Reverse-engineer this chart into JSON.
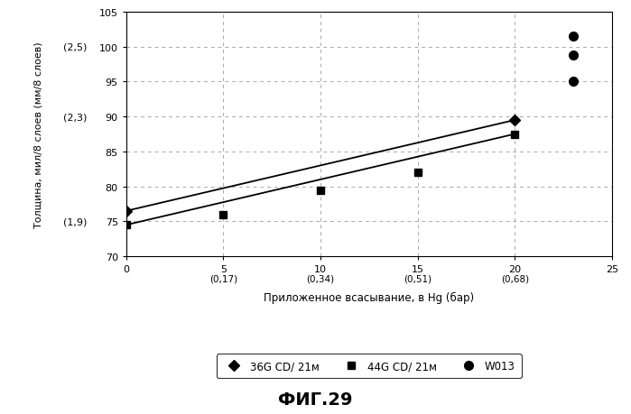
{
  "title": "ФИГ.29",
  "xlabel": "Приложенное всасывание, в Hg (бар)",
  "ylabel": "Толщина, мил/8 слоев (мм/8 слоев)",
  "xlim": [
    0,
    25
  ],
  "ylim": [
    70,
    105
  ],
  "xticks": [
    0,
    5,
    10,
    15,
    20,
    25
  ],
  "xtick_labels_top": [
    "0",
    "5",
    "10",
    "15",
    "20",
    "25"
  ],
  "xtick_labels_bot": [
    "",
    "(0,17)",
    "(0,34)",
    "(0,51)",
    "(0,68)",
    ""
  ],
  "yticks": [
    70,
    75,
    80,
    85,
    90,
    95,
    100,
    105
  ],
  "ytick_secondary_labels": {
    "75": "(1,9)",
    "90": "(2,3)",
    "100": "(2,5)"
  },
  "series_36G": {
    "label": "36G CD/ 21м",
    "x": [
      0,
      20
    ],
    "y": [
      76.5,
      89.5
    ],
    "marker": "D",
    "color": "#000000",
    "markersize": 6
  },
  "series_44G": {
    "label": "44G CD/ 21м",
    "x": [
      0,
      5,
      10,
      15,
      20
    ],
    "y": [
      74.5,
      76.0,
      79.5,
      82.0,
      87.5
    ],
    "marker": "s",
    "color": "#000000",
    "markersize": 6
  },
  "series_W013": {
    "label": "W013",
    "x": [
      23,
      23,
      23
    ],
    "y": [
      95.0,
      98.8,
      101.5
    ],
    "marker": "o",
    "color": "#000000",
    "markersize": 7
  },
  "trendline_36G": {
    "x": [
      0,
      20
    ],
    "y": [
      76.5,
      89.5
    ]
  },
  "trendline_44G": {
    "x": [
      0,
      20
    ],
    "y": [
      74.5,
      87.5
    ]
  },
  "background_color": "#ffffff",
  "grid_color": "#aaaaaa"
}
